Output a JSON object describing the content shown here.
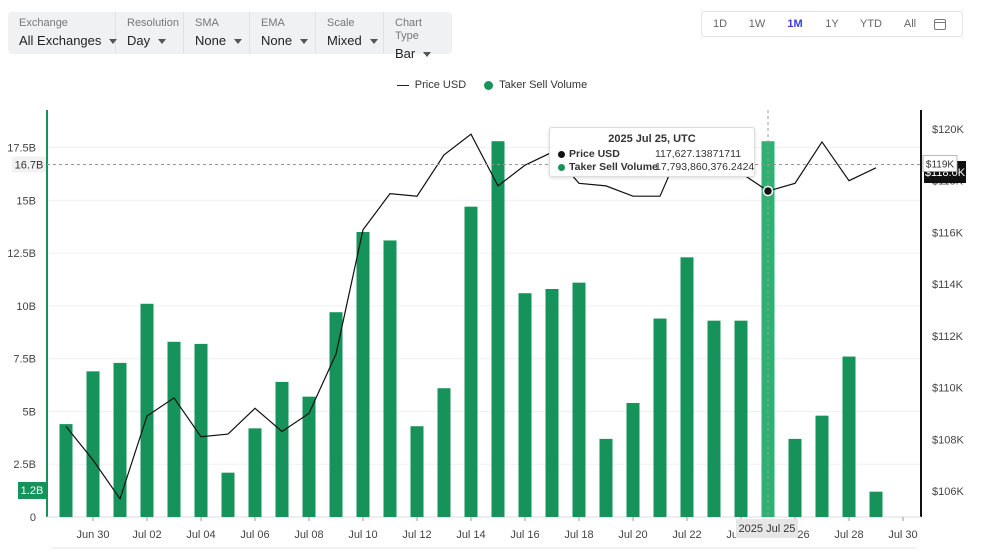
{
  "toolbar": [
    {
      "label": "Exchange",
      "value": "All Exchanges"
    },
    {
      "label": "Resolution",
      "value": "Day"
    },
    {
      "label": "SMA",
      "value": "None"
    },
    {
      "label": "EMA",
      "value": "None"
    },
    {
      "label": "Scale",
      "value": "Mixed"
    },
    {
      "label": "Chart Type",
      "value": "Bar"
    }
  ],
  "ranges": [
    "1D",
    "1W",
    "1M",
    "1Y",
    "YTD",
    "All"
  ],
  "active_range": "1M",
  "tooltip": {
    "title": "2025 Jul 25, UTC",
    "rows": [
      {
        "name": "Price USD",
        "value": "117,627.13871711",
        "color": "#111111"
      },
      {
        "name": "Taker Sell Volume",
        "value": "17,793,860,376.2424",
        "color": "#16935a"
      }
    ]
  },
  "crosshair": {
    "date_label": "2025 Jul 25",
    "left_label": "16.7B",
    "right_label": "$119K",
    "right_label_alt": "$118.0K",
    "left_badge": "1.2B"
  },
  "colors": {
    "bar": "#16935a",
    "bar_highlight": "#2fb173",
    "price": "#111111"
  },
  "chart_data": {
    "type": "bar",
    "legend": [
      "Price USD",
      "Taker Sell Volume"
    ],
    "legend_position": "top-center",
    "grid": true,
    "x": [
      "2025-06-29",
      "2025-06-30",
      "2025-07-01",
      "2025-07-02",
      "2025-07-03",
      "2025-07-04",
      "2025-07-05",
      "2025-07-06",
      "2025-07-07",
      "2025-07-08",
      "2025-07-09",
      "2025-07-10",
      "2025-07-11",
      "2025-07-12",
      "2025-07-13",
      "2025-07-14",
      "2025-07-15",
      "2025-07-16",
      "2025-07-17",
      "2025-07-18",
      "2025-07-19",
      "2025-07-20",
      "2025-07-21",
      "2025-07-22",
      "2025-07-23",
      "2025-07-24",
      "2025-07-25",
      "2025-07-26",
      "2025-07-27",
      "2025-07-28",
      "2025-07-29"
    ],
    "x_tick_labels": [
      "Jun 30",
      "Jul 02",
      "Jul 04",
      "Jul 06",
      "Jul 08",
      "Jul 10",
      "Jul 12",
      "Jul 14",
      "Jul 16",
      "Jul 18",
      "Jul 20",
      "Jul 22",
      "Jul 24",
      "Jul 26",
      "Jul 28",
      "Jul 30"
    ],
    "series": [
      {
        "name": "Taker Sell Volume",
        "axis": "left",
        "type": "bar",
        "values": [
          4.4,
          6.9,
          7.3,
          10.1,
          8.3,
          8.2,
          2.1,
          4.2,
          6.4,
          5.7,
          9.7,
          13.5,
          13.1,
          4.3,
          6.1,
          14.7,
          17.8,
          10.6,
          10.8,
          11.1,
          3.7,
          5.4,
          9.4,
          12.3,
          9.3,
          9.3,
          17.8,
          3.7,
          4.8,
          7.6,
          1.2
        ]
      },
      {
        "name": "Price USD",
        "axis": "right",
        "type": "line",
        "values": [
          108500,
          107200,
          105700,
          108900,
          109600,
          108100,
          108200,
          109200,
          108300,
          109000,
          111300,
          116100,
          117500,
          117400,
          119000,
          119800,
          117800,
          118600,
          119100,
          117900,
          117800,
          117400,
          117400,
          119800,
          118700,
          118300,
          117600,
          117900,
          119500,
          118000,
          118500
        ]
      }
    ],
    "y_left": {
      "range": [
        0,
        18.9
      ],
      "ticks": [
        "0",
        "2.5B",
        "5B",
        "7.5B",
        "10B",
        "12.5B",
        "15B",
        "17.5B"
      ],
      "tick_values": [
        0,
        2.5,
        5,
        7.5,
        10,
        12.5,
        15,
        17.5
      ]
    },
    "y_right": {
      "range": [
        105000,
        120500
      ],
      "ticks": [
        "$106K",
        "$108K",
        "$110K",
        "$112K",
        "$114K",
        "$116K",
        "$118K",
        "$120K"
      ],
      "tick_values": [
        106000,
        108000,
        110000,
        112000,
        114000,
        116000,
        118000,
        120000
      ]
    },
    "highlight_index": 26
  }
}
